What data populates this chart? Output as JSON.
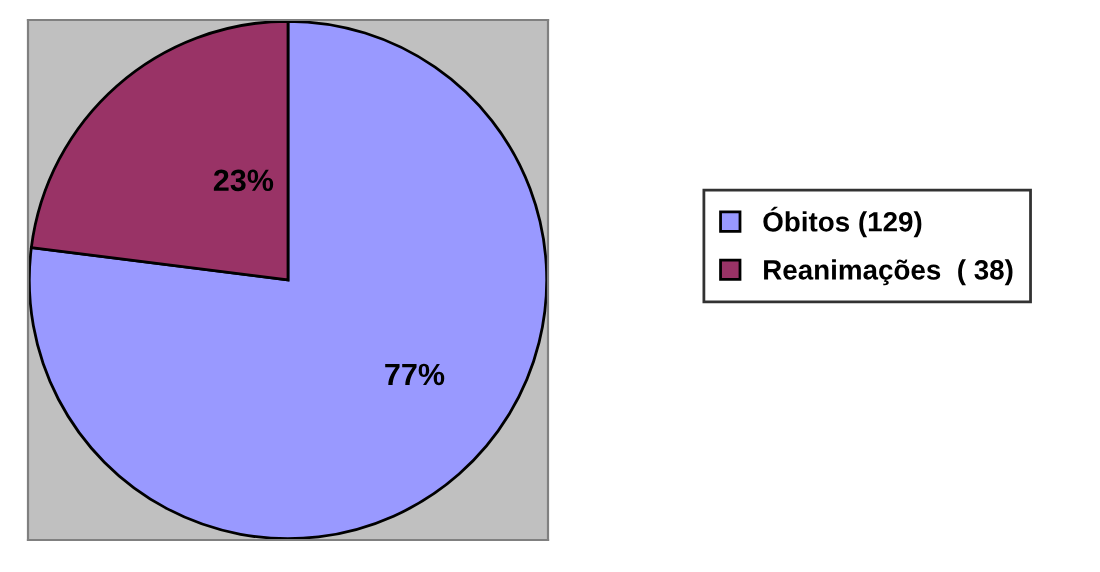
{
  "chart_data": {
    "type": "pie",
    "categories": [
      "Óbitos (129)",
      "Reanimações  ( 38)"
    ],
    "values": [
      77,
      23
    ],
    "colors": [
      "#9999ff",
      "#993366"
    ],
    "value_labels": [
      "77%",
      "23%"
    ],
    "legend": "right"
  }
}
